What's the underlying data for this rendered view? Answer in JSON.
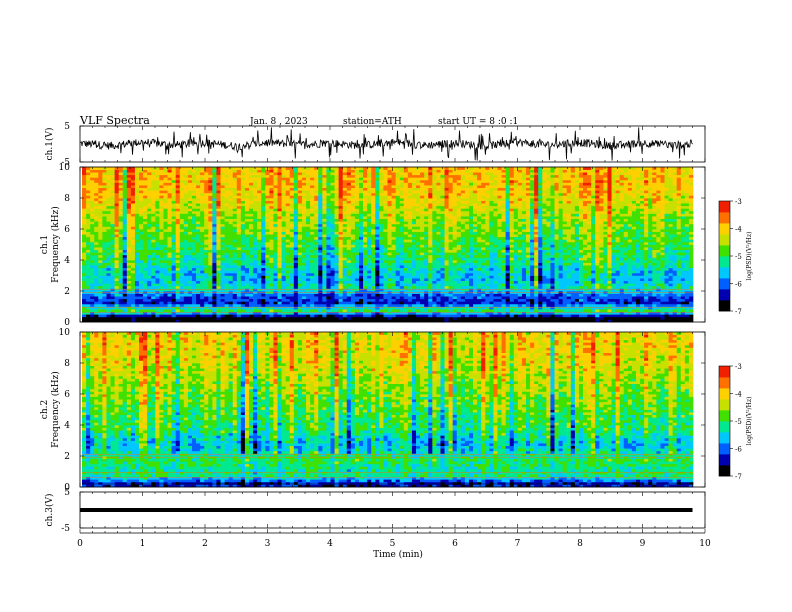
{
  "header": {
    "title": "VLF  Spectra",
    "date": "Jan. 8 , 2023",
    "station": "station=ATH",
    "start": "start  UT  =  8  :0  :1"
  },
  "colors": {
    "spectrum_scale": [
      "#000000",
      "#0000b0",
      "#0060ff",
      "#00c8ff",
      "#00e890",
      "#40e000",
      "#c8e000",
      "#ffd000",
      "#ff7000",
      "#f02000",
      "#ffffff"
    ],
    "waveform": "#000000"
  },
  "chart_data": [
    {
      "type": "line",
      "panel": "waveform-ch1",
      "ylabel": "ch.1(V)",
      "ylim": [
        -5,
        5
      ],
      "yticks": [
        "5",
        "-5"
      ],
      "x": [
        0,
        0.5,
        1,
        1.5,
        2,
        2.5,
        3,
        3.5,
        4,
        4.5,
        5,
        5.5,
        6,
        6.5,
        7,
        7.5,
        8,
        8.5,
        9,
        9.5,
        9.8
      ],
      "series": [
        {
          "values": [
            0.5,
            -1.2,
            1.4,
            -0.8,
            0.9,
            -1.5,
            1.1,
            -0.6,
            0.7,
            -1.1,
            1.3,
            -0.9,
            0.6,
            -1.4,
            1.2,
            -0.7,
            1.0,
            -1.3,
            0.8,
            -1.0,
            0.2
          ]
        }
      ],
      "note": "noisy waveform with impulsive spikes spanning about -3 to +3 V"
    },
    {
      "type": "heatmap",
      "panel": "spectrogram-ch1",
      "ylabel": "ch.1\nFrequency (kHz)",
      "ylim": [
        0,
        10
      ],
      "yticks": [
        "0",
        "2",
        "4",
        "6",
        "8",
        "10"
      ],
      "xlim": [
        0,
        9.8
      ],
      "colorbar": {
        "label": "log(PSD)(V²/Hz)",
        "range": [
          -7,
          -3
        ],
        "ticks": [
          "-3",
          "-4",
          "-5",
          "-6",
          "-7"
        ]
      },
      "band_profile_log_psd": [
        {
          "f_khz": 0.25,
          "value": -7.0
        },
        {
          "f_khz": 0.75,
          "value": -5.0
        },
        {
          "f_khz": 1.25,
          "value": -6.3
        },
        {
          "f_khz": 1.75,
          "value": -6.0
        },
        {
          "f_khz": 2.25,
          "value": -5.3
        },
        {
          "f_khz": 2.75,
          "value": -5.6
        },
        {
          "f_khz": 3.25,
          "value": -5.5
        },
        {
          "f_khz": 3.75,
          "value": -5.2
        },
        {
          "f_khz": 4.5,
          "value": -5.0
        },
        {
          "f_khz": 5.5,
          "value": -4.8
        },
        {
          "f_khz": 6.5,
          "value": -4.6
        },
        {
          "f_khz": 7.5,
          "value": -4.3
        },
        {
          "f_khz": 8.5,
          "value": -4.0
        },
        {
          "f_khz": 9.5,
          "value": -4.0
        }
      ]
    },
    {
      "type": "heatmap",
      "panel": "spectrogram-ch2",
      "ylabel": "ch.2\nFrequency (kHz)",
      "ylim": [
        0,
        10
      ],
      "yticks": [
        "0",
        "2",
        "4",
        "6",
        "8",
        "10"
      ],
      "xlim": [
        0,
        9.8
      ],
      "colorbar": {
        "label": "log(PSD)(V²/Hz)",
        "range": [
          -7,
          -3
        ],
        "ticks": [
          "-3",
          "-4",
          "-5",
          "-6",
          "-7"
        ]
      },
      "band_profile_log_psd": [
        {
          "f_khz": 0.25,
          "value": -6.4
        },
        {
          "f_khz": 0.75,
          "value": -5.2
        },
        {
          "f_khz": 1.25,
          "value": -5.2
        },
        {
          "f_khz": 1.75,
          "value": -5.0
        },
        {
          "f_khz": 2.25,
          "value": -5.4
        },
        {
          "f_khz": 2.75,
          "value": -5.6
        },
        {
          "f_khz": 3.25,
          "value": -5.4
        },
        {
          "f_khz": 3.75,
          "value": -5.1
        },
        {
          "f_khz": 4.5,
          "value": -5.0
        },
        {
          "f_khz": 5.5,
          "value": -4.8
        },
        {
          "f_khz": 6.5,
          "value": -4.6
        },
        {
          "f_khz": 7.5,
          "value": -4.4
        },
        {
          "f_khz": 8.5,
          "value": -4.2
        },
        {
          "f_khz": 9.5,
          "value": -4.2
        }
      ]
    },
    {
      "type": "line",
      "panel": "waveform-ch3",
      "ylabel": "ch.3(V)",
      "ylim": [
        -5,
        5
      ],
      "yticks": [
        "5",
        "-5"
      ],
      "x": [
        0,
        9.8
      ],
      "series": [
        {
          "values": [
            0.0,
            0.0
          ]
        }
      ],
      "note": "flat line near 0 V"
    }
  ],
  "x_axis": {
    "label": "Time  (min)",
    "range": [
      0,
      10
    ],
    "ticks": [
      "0",
      "1",
      "2",
      "3",
      "4",
      "5",
      "6",
      "7",
      "8",
      "9",
      "10"
    ]
  }
}
